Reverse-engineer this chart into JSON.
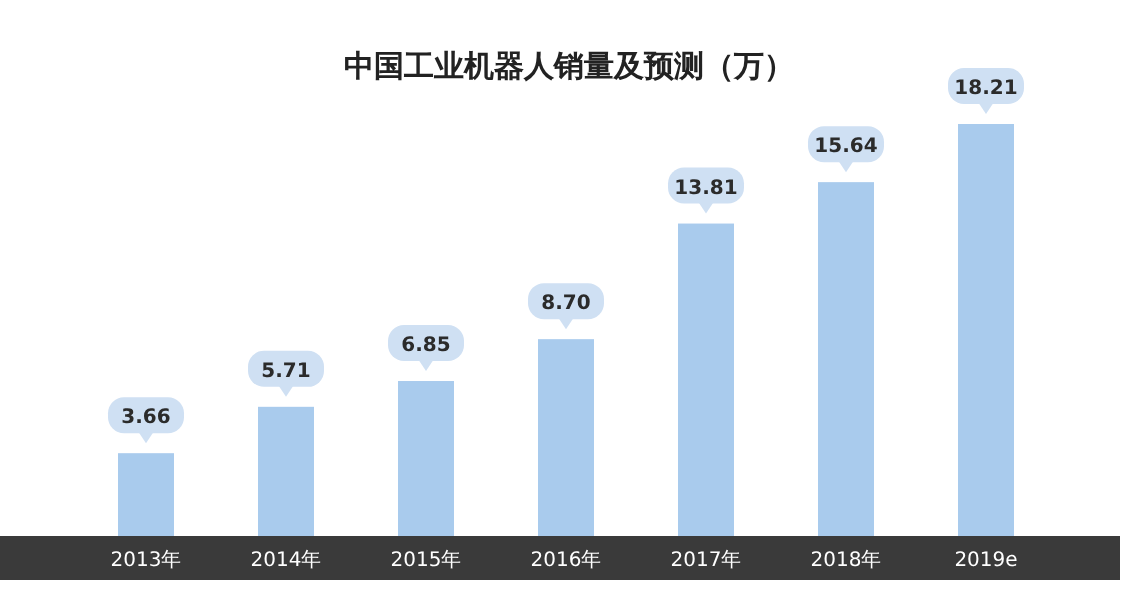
{
  "chart_data": {
    "type": "bar",
    "title": "中国工业机器人销量及预测（万）",
    "categories": [
      "2013年",
      "2014年",
      "2015年",
      "2016年",
      "2017年",
      "2018年",
      "2019e"
    ],
    "values": [
      3.66,
      5.71,
      6.85,
      8.7,
      13.81,
      15.64,
      18.21
    ],
    "value_labels": [
      "3.66",
      "5.71",
      "6.85",
      "8.70",
      "13.81",
      "15.64",
      "18.21"
    ],
    "color": "#a9cbed"
  }
}
